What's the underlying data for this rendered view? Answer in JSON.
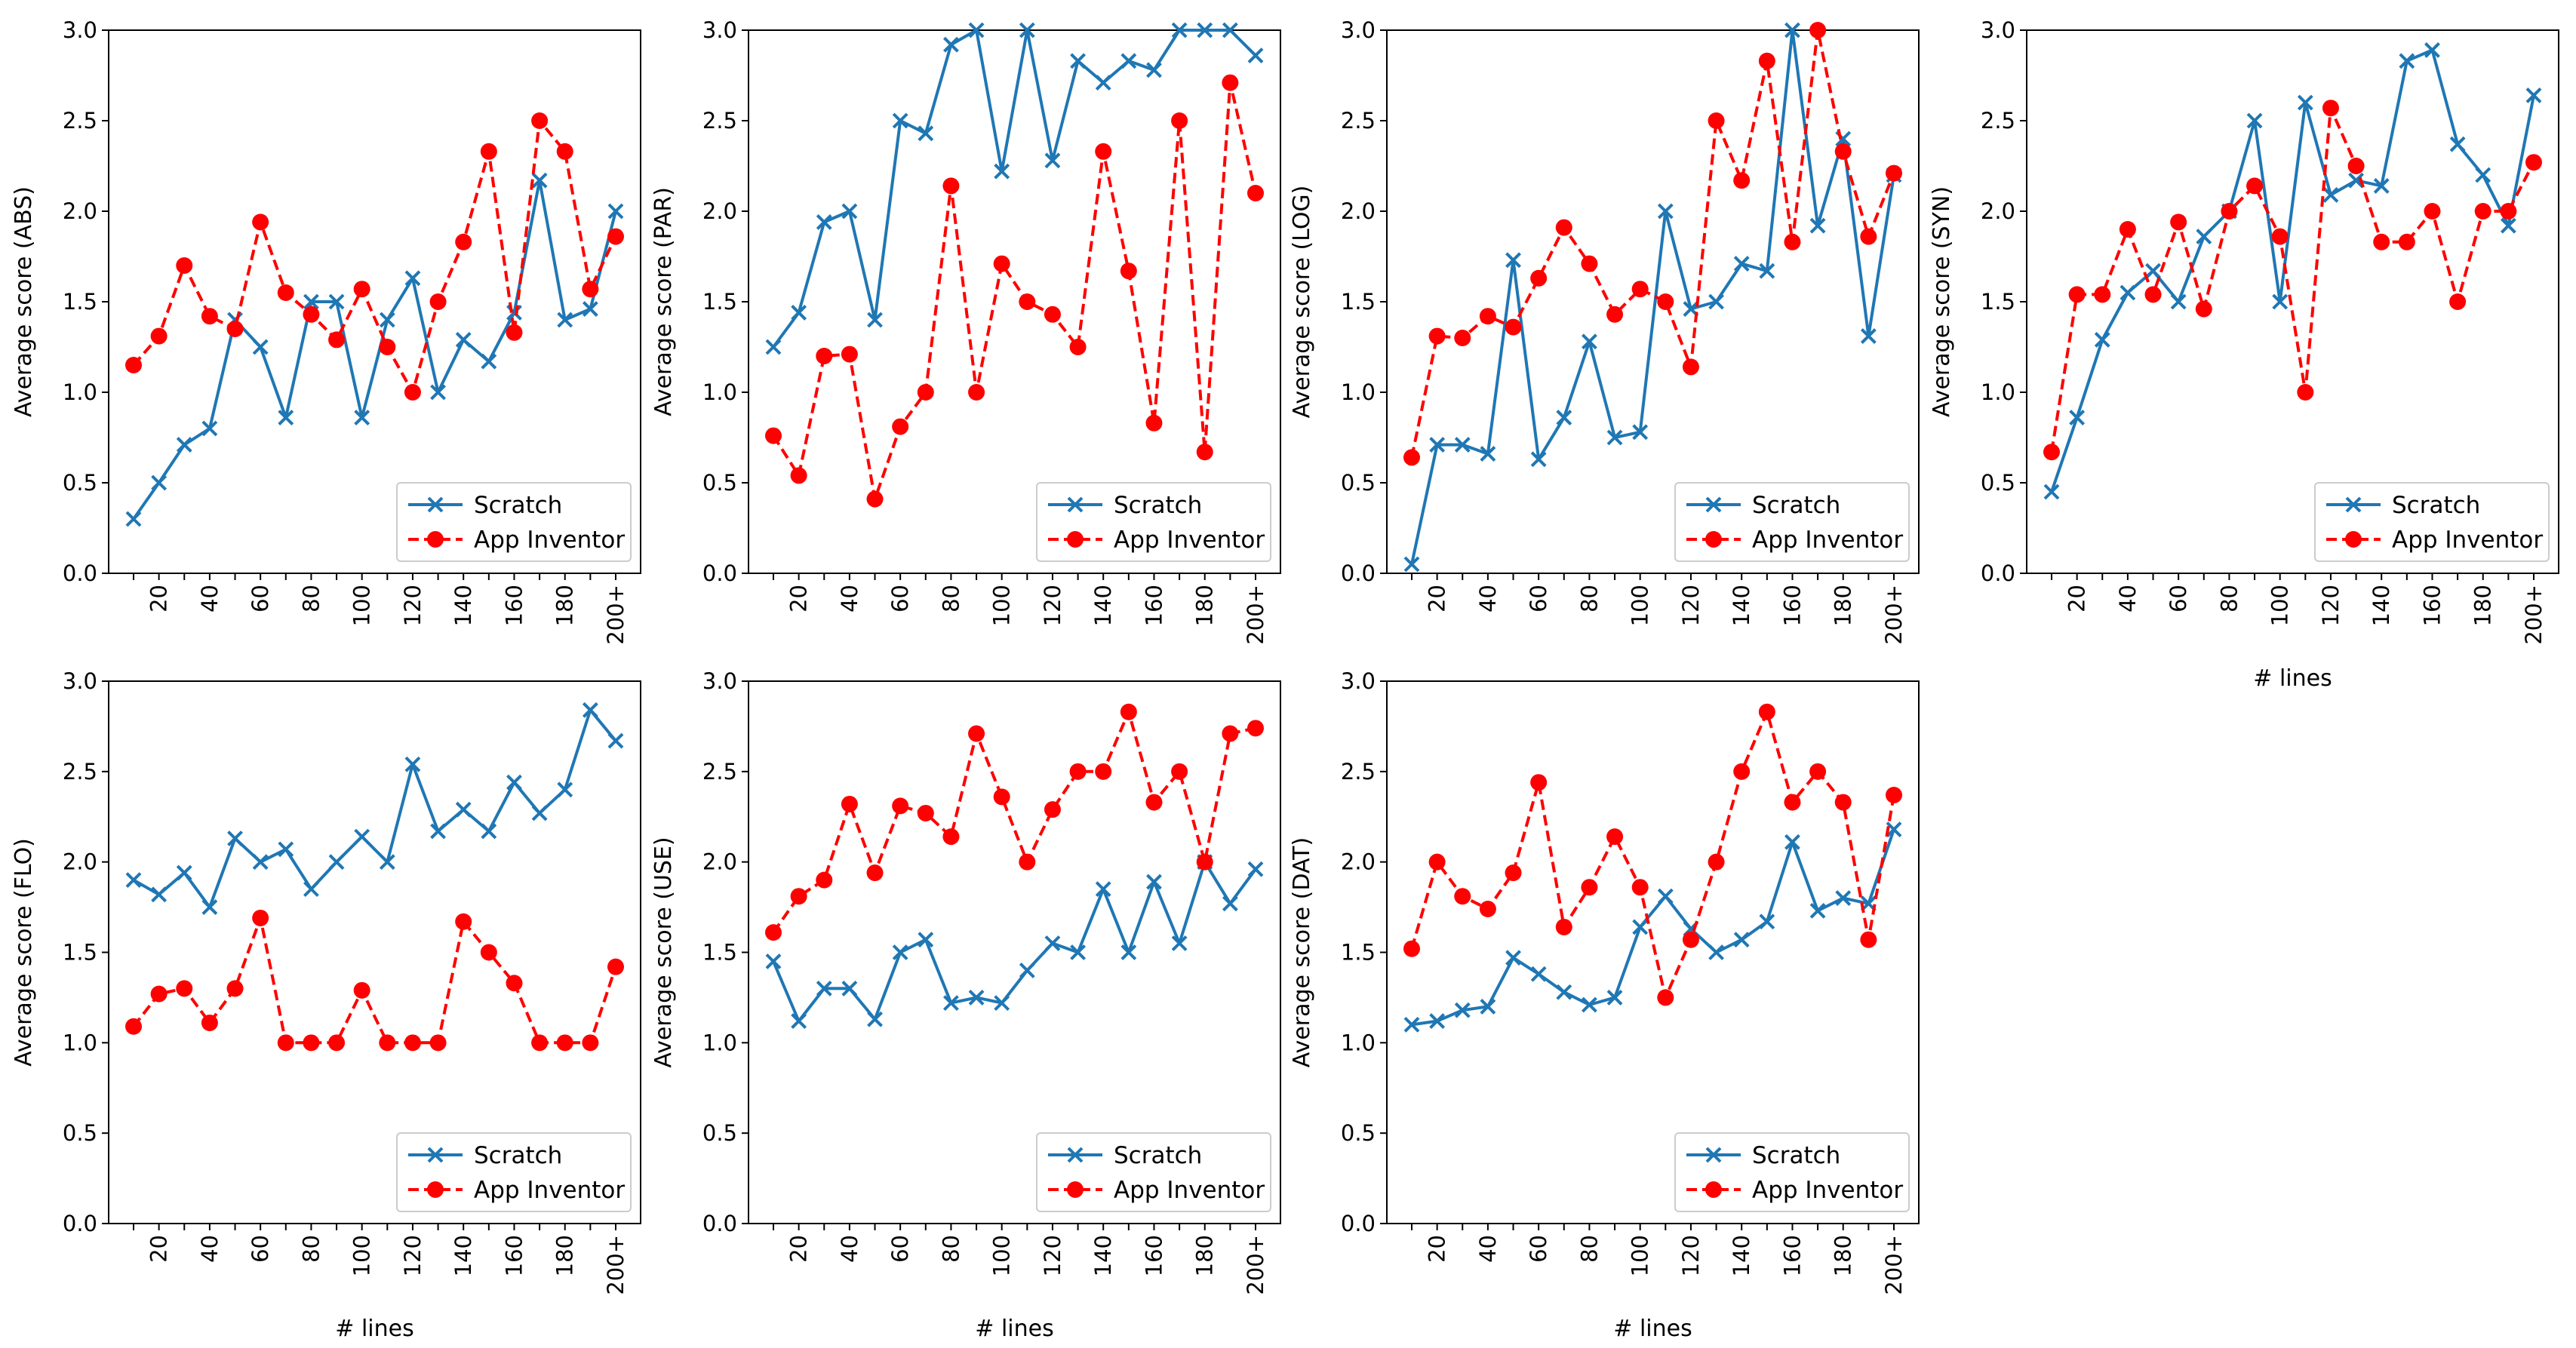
{
  "colors": {
    "scratch": "#1f77b4",
    "app_inventor": "#ff0000",
    "axis": "#000000",
    "legend_border": "#cccccc"
  },
  "chart_data": [
    {
      "type": "line",
      "id": "abs",
      "ylabel": "Average score (ABS)",
      "xlabel": "",
      "ylim": [
        0,
        3
      ],
      "yticks": [
        "0.0",
        "0.5",
        "1.0",
        "1.5",
        "2.0",
        "2.5",
        "3.0"
      ],
      "xticks": [
        "20",
        "40",
        "60",
        "80",
        "100",
        "120",
        "140",
        "160",
        "180",
        "200+"
      ],
      "legend": [
        "Scratch",
        "App Inventor"
      ],
      "legend_position": "lower right",
      "series": [
        {
          "name": "Scratch",
          "values": [
            0.3,
            0.5,
            0.71,
            0.8,
            1.4,
            1.25,
            0.86,
            1.5,
            1.5,
            0.86,
            1.4,
            1.63,
            1.0,
            1.29,
            1.17,
            1.44,
            2.17,
            1.4,
            1.46,
            2.0
          ]
        },
        {
          "name": "App Inventor",
          "values": [
            1.15,
            1.31,
            1.7,
            1.42,
            1.35,
            1.94,
            1.55,
            1.43,
            1.29,
            1.57,
            1.25,
            1.0,
            1.5,
            1.83,
            2.33,
            1.33,
            2.5,
            2.33,
            1.57,
            1.86
          ]
        }
      ]
    },
    {
      "type": "line",
      "id": "par",
      "ylabel": "Average score (PAR)",
      "xlabel": "",
      "ylim": [
        0,
        3
      ],
      "yticks": [
        "0.0",
        "0.5",
        "1.0",
        "1.5",
        "2.0",
        "2.5",
        "3.0"
      ],
      "xticks": [
        "20",
        "40",
        "60",
        "80",
        "100",
        "120",
        "140",
        "160",
        "180",
        "200+"
      ],
      "legend": [
        "Scratch",
        "App Inventor"
      ],
      "legend_position": "lower right",
      "series": [
        {
          "name": "Scratch",
          "values": [
            1.25,
            1.44,
            1.94,
            2.0,
            1.4,
            2.5,
            2.43,
            2.92,
            3.0,
            2.22,
            3.0,
            2.28,
            2.83,
            2.71,
            2.83,
            2.78,
            3.0,
            3.0,
            3.0,
            2.86
          ]
        },
        {
          "name": "App Inventor",
          "values": [
            0.76,
            0.54,
            1.2,
            1.21,
            0.41,
            0.81,
            1.0,
            2.14,
            1.0,
            1.71,
            1.5,
            1.43,
            1.25,
            2.33,
            1.67,
            0.83,
            2.5,
            0.67,
            2.71,
            2.1
          ]
        }
      ]
    },
    {
      "type": "line",
      "id": "log",
      "ylabel": "Average score (LOG)",
      "xlabel": "",
      "ylim": [
        0,
        3
      ],
      "yticks": [
        "0.0",
        "0.5",
        "1.0",
        "1.5",
        "2.0",
        "2.5",
        "3.0"
      ],
      "xticks": [
        "20",
        "40",
        "60",
        "80",
        "100",
        "120",
        "140",
        "160",
        "180",
        "200+"
      ],
      "legend": [
        "Scratch",
        "App Inventor"
      ],
      "legend_position": "lower right",
      "series": [
        {
          "name": "Scratch",
          "values": [
            0.05,
            0.71,
            0.71,
            0.66,
            1.73,
            0.63,
            0.86,
            1.28,
            0.75,
            0.78,
            2.0,
            1.46,
            1.5,
            1.71,
            1.67,
            3.0,
            1.92,
            2.4,
            1.31,
            2.2
          ]
        },
        {
          "name": "App Inventor",
          "values": [
            0.64,
            1.31,
            1.3,
            1.42,
            1.36,
            1.63,
            1.91,
            1.71,
            1.43,
            1.57,
            1.5,
            1.14,
            2.5,
            2.17,
            2.83,
            1.83,
            3.0,
            2.33,
            1.86,
            2.21
          ]
        }
      ]
    },
    {
      "type": "line",
      "id": "syn",
      "ylabel": "Average score (SYN)",
      "xlabel": "# lines",
      "ylim": [
        0,
        3
      ],
      "yticks": [
        "0.0",
        "0.5",
        "1.0",
        "1.5",
        "2.0",
        "2.5",
        "3.0"
      ],
      "xticks": [
        "20",
        "40",
        "60",
        "80",
        "100",
        "120",
        "140",
        "160",
        "180",
        "200+"
      ],
      "legend": [
        "Scratch",
        "App Inventor"
      ],
      "legend_position": "lower right",
      "series": [
        {
          "name": "Scratch",
          "values": [
            0.45,
            0.86,
            1.29,
            1.55,
            1.67,
            1.5,
            1.86,
            2.0,
            2.5,
            1.5,
            2.6,
            2.09,
            2.17,
            2.14,
            2.83,
            2.89,
            2.37,
            2.2,
            1.92,
            2.64
          ]
        },
        {
          "name": "App Inventor",
          "values": [
            0.67,
            1.54,
            1.54,
            1.9,
            1.54,
            1.94,
            1.46,
            2.0,
            2.14,
            1.86,
            1.0,
            2.57,
            2.25,
            1.83,
            1.83,
            2.0,
            1.5,
            2.0,
            2.0,
            2.27
          ]
        }
      ]
    },
    {
      "type": "line",
      "id": "flo",
      "ylabel": "Average score (FLO)",
      "xlabel": "# lines",
      "ylim": [
        0,
        3
      ],
      "yticks": [
        "0.0",
        "0.5",
        "1.0",
        "1.5",
        "2.0",
        "2.5",
        "3.0"
      ],
      "xticks": [
        "20",
        "40",
        "60",
        "80",
        "100",
        "120",
        "140",
        "160",
        "180",
        "200+"
      ],
      "legend": [
        "Scratch",
        "App Inventor"
      ],
      "legend_position": "lower right",
      "series": [
        {
          "name": "Scratch",
          "values": [
            1.9,
            1.82,
            1.94,
            1.75,
            2.13,
            2.0,
            2.07,
            1.85,
            2.0,
            2.14,
            2.0,
            2.54,
            2.17,
            2.29,
            2.17,
            2.44,
            2.27,
            2.4,
            2.84,
            2.67
          ]
        },
        {
          "name": "App Inventor",
          "values": [
            1.09,
            1.27,
            1.3,
            1.11,
            1.3,
            1.69,
            1.0,
            1.0,
            1.0,
            1.29,
            1.0,
            1.0,
            1.0,
            1.67,
            1.5,
            1.33,
            1.0,
            1.0,
            1.0,
            1.42
          ]
        }
      ]
    },
    {
      "type": "line",
      "id": "use",
      "ylabel": "Average score (USE)",
      "xlabel": "# lines",
      "ylim": [
        0,
        3
      ],
      "yticks": [
        "0.0",
        "0.5",
        "1.0",
        "1.5",
        "2.0",
        "2.5",
        "3.0"
      ],
      "xticks": [
        "20",
        "40",
        "60",
        "80",
        "100",
        "120",
        "140",
        "160",
        "180",
        "200+"
      ],
      "legend": [
        "Scratch",
        "App Inventor"
      ],
      "legend_position": "lower right",
      "series": [
        {
          "name": "Scratch",
          "values": [
            1.45,
            1.12,
            1.3,
            1.3,
            1.13,
            1.5,
            1.57,
            1.22,
            1.25,
            1.22,
            1.4,
            1.55,
            1.5,
            1.85,
            1.5,
            1.89,
            1.55,
            2.0,
            1.77,
            1.96
          ]
        },
        {
          "name": "App Inventor",
          "values": [
            1.61,
            1.81,
            1.9,
            2.32,
            1.94,
            2.31,
            2.27,
            2.14,
            2.71,
            2.36,
            2.0,
            2.29,
            2.5,
            2.5,
            2.83,
            2.33,
            2.5,
            2.0,
            2.71,
            2.74
          ]
        }
      ]
    },
    {
      "type": "line",
      "id": "dat",
      "ylabel": "Average score (DAT)",
      "xlabel": "# lines",
      "ylim": [
        0,
        3
      ],
      "yticks": [
        "0.0",
        "0.5",
        "1.0",
        "1.5",
        "2.0",
        "2.5",
        "3.0"
      ],
      "xticks": [
        "20",
        "40",
        "60",
        "80",
        "100",
        "120",
        "140",
        "160",
        "180",
        "200+"
      ],
      "legend": [
        "Scratch",
        "App Inventor"
      ],
      "legend_position": "lower right",
      "series": [
        {
          "name": "Scratch",
          "values": [
            1.1,
            1.12,
            1.18,
            1.2,
            1.47,
            1.38,
            1.28,
            1.21,
            1.25,
            1.64,
            1.81,
            1.63,
            1.5,
            1.57,
            1.67,
            2.11,
            1.73,
            1.8,
            1.77,
            2.18
          ]
        },
        {
          "name": "App Inventor",
          "values": [
            1.52,
            2.0,
            1.81,
            1.74,
            1.94,
            2.44,
            1.64,
            1.86,
            2.14,
            1.86,
            1.25,
            1.57,
            2.0,
            2.5,
            2.83,
            2.33,
            2.5,
            2.33,
            1.57,
            2.37
          ]
        }
      ]
    }
  ]
}
